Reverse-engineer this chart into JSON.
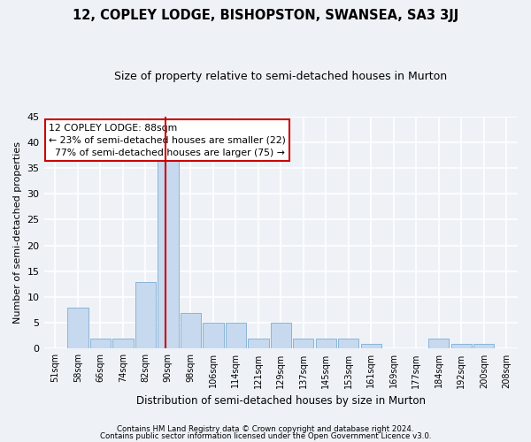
{
  "title": "12, COPLEY LODGE, BISHOPSTON, SWANSEA, SA3 3JJ",
  "subtitle": "Size of property relative to semi-detached houses in Murton",
  "xlabel": "Distribution of semi-detached houses by size in Murton",
  "ylabel": "Number of semi-detached properties",
  "categories": [
    "51sqm",
    "58sqm",
    "66sqm",
    "74sqm",
    "82sqm",
    "90sqm",
    "98sqm",
    "106sqm",
    "114sqm",
    "121sqm",
    "129sqm",
    "137sqm",
    "145sqm",
    "153sqm",
    "161sqm",
    "169sqm",
    "177sqm",
    "184sqm",
    "192sqm",
    "200sqm",
    "208sqm"
  ],
  "values": [
    0,
    8,
    2,
    2,
    13,
    37,
    7,
    5,
    5,
    2,
    5,
    2,
    2,
    2,
    1,
    0,
    0,
    2,
    1,
    1,
    0
  ],
  "bar_color": "#c6d9ee",
  "bar_edge_color": "#8ab4d8",
  "property_label": "12 COPLEY LODGE: 88sqm",
  "pct_smaller": 23,
  "pct_larger": 77,
  "n_smaller": 22,
  "n_larger": 75,
  "vline_color": "#cc0000",
  "vline_x_index": 4.88,
  "ylim": [
    0,
    45
  ],
  "yticks": [
    0,
    5,
    10,
    15,
    20,
    25,
    30,
    35,
    40,
    45
  ],
  "annotation_box_color": "#ffffff",
  "annotation_box_edge": "#cc0000",
  "footer1": "Contains HM Land Registry data © Crown copyright and database right 2024.",
  "footer2": "Contains public sector information licensed under the Open Government Licence v3.0.",
  "background_color": "#eef2f7",
  "grid_color": "#ffffff"
}
